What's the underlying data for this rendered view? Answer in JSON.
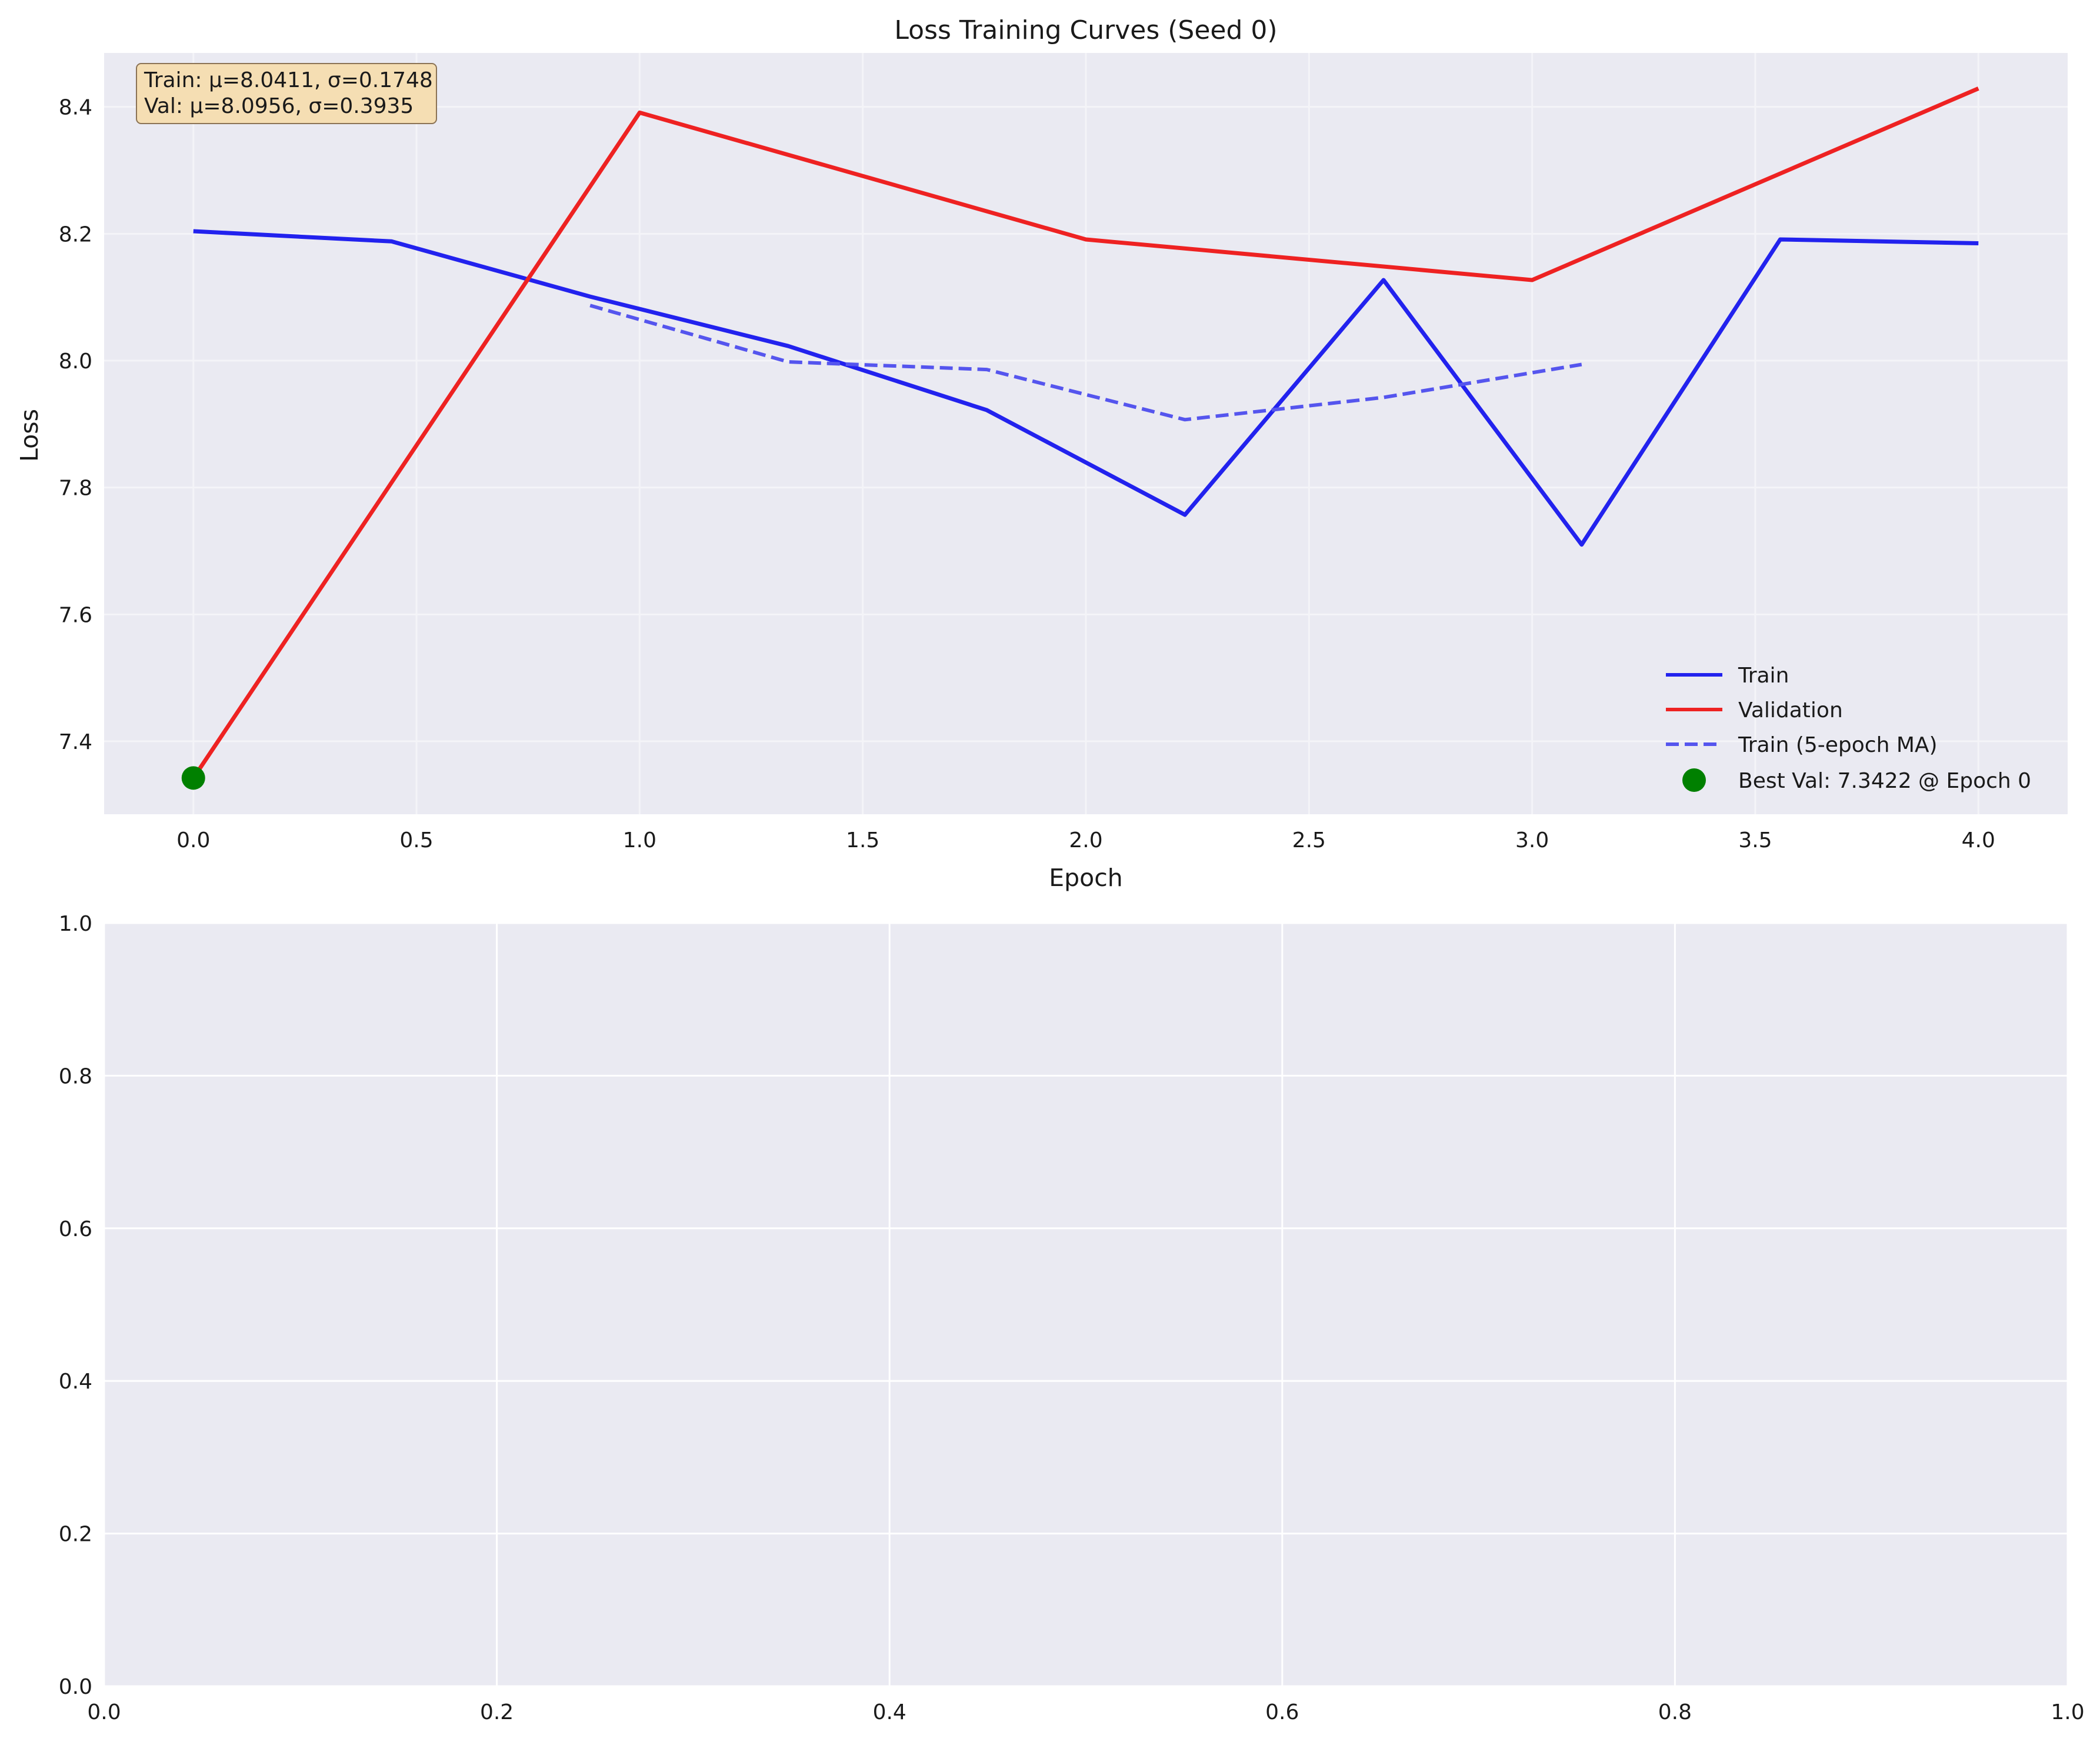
{
  "colors": {
    "axes_bg": "#EAEAF2",
    "grid_top": "#F4F4F8",
    "grid_bottom": "#FFFFFF",
    "train": "#2222EE",
    "validation": "#EE2222",
    "train_ma": "#5555EE",
    "best_marker": "#008000",
    "stats_box_fill": "#F5DEB3",
    "stats_box_edge": "#8B7355"
  },
  "chart_data": [
    {
      "type": "line",
      "title": "Loss Training Curves (Seed 0)",
      "xlabel": "Epoch",
      "ylabel": "Loss",
      "xlim": [
        -0.2,
        4.2
      ],
      "ylim": [
        7.285,
        8.485
      ],
      "xticks": [
        0.0,
        0.5,
        1.0,
        1.5,
        2.0,
        2.5,
        3.0,
        3.5,
        4.0
      ],
      "xtick_labels": [
        "0.0",
        "0.5",
        "1.0",
        "1.5",
        "2.0",
        "2.5",
        "3.0",
        "3.5",
        "4.0"
      ],
      "yticks": [
        7.4,
        7.6,
        7.8,
        8.0,
        8.2,
        8.4
      ],
      "ytick_labels": [
        "7.4",
        "7.6",
        "7.8",
        "8.0",
        "8.2",
        "8.4"
      ],
      "grid": true,
      "legend_position": "lower-right",
      "series": [
        {
          "name": "Train",
          "style": "solid",
          "x": [
            0.0,
            0.444,
            0.889,
            1.333,
            1.778,
            2.222,
            2.667,
            3.111,
            3.556,
            4.0
          ],
          "y": [
            8.204,
            8.188,
            8.101,
            8.023,
            7.922,
            7.757,
            8.127,
            7.71,
            8.191,
            8.185
          ]
        },
        {
          "name": "Validation",
          "style": "solid",
          "x": [
            0.0,
            1.0,
            2.0,
            3.0,
            4.0
          ],
          "y": [
            7.342,
            8.391,
            8.191,
            8.127,
            8.429
          ]
        },
        {
          "name": "Train (5-epoch MA)",
          "style": "dashed",
          "x": [
            0.889,
            1.333,
            1.778,
            2.222,
            2.667,
            3.111
          ],
          "y": [
            8.087,
            7.998,
            7.986,
            7.907,
            7.942,
            7.994
          ]
        }
      ],
      "best_point": {
        "label": "Best Val: 7.3422 @ Epoch 0",
        "x": 0.0,
        "y": 7.3422
      },
      "stats_annotation": [
        "Train: μ=8.0411, σ=0.1748",
        "Val: μ=8.0956, σ=0.3935"
      ]
    },
    {
      "type": "line",
      "title": "",
      "xlabel": "",
      "ylabel": "",
      "xlim": [
        0.0,
        1.0
      ],
      "ylim": [
        0.0,
        1.0
      ],
      "xticks": [
        0.0,
        0.2,
        0.4,
        0.6,
        0.8,
        1.0
      ],
      "xtick_labels": [
        "0.0",
        "0.2",
        "0.4",
        "0.6",
        "0.8",
        "1.0"
      ],
      "yticks": [
        0.0,
        0.2,
        0.4,
        0.6,
        0.8,
        1.0
      ],
      "ytick_labels": [
        "0.0",
        "0.2",
        "0.4",
        "0.6",
        "0.8",
        "1.0"
      ],
      "grid": true,
      "series": []
    }
  ]
}
